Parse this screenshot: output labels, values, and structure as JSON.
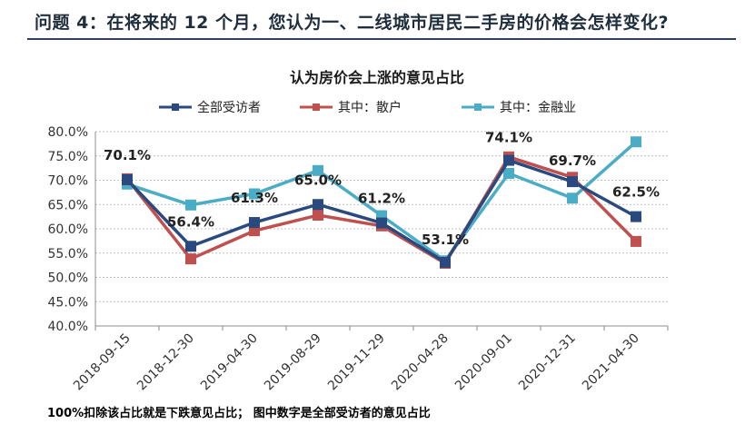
{
  "page": {
    "title": "问题 4：在将来的 12 个月，您认为一、二线城市居民二手房的价格会怎样变化?",
    "footnote": "100%扣除该占比就是下跌意见占比；  图中数字是全部受访者的意见占比"
  },
  "chart_data": {
    "type": "line",
    "title": "认为房价会上涨的意见占比",
    "categories": [
      "2018-09-15",
      "2018-12-30",
      "2019-04-30",
      "2019-08-29",
      "2019-11-29",
      "2020-04-28",
      "2020-09-01",
      "2020-12-31",
      "2021-04-30"
    ],
    "ylim": [
      40,
      80
    ],
    "yticks": [
      "40.0%",
      "45.0%",
      "50.0%",
      "55.0%",
      "60.0%",
      "65.0%",
      "70.0%",
      "75.0%",
      "80.0%"
    ],
    "grid": "horizontal-dashed",
    "legend": "top",
    "series": [
      {
        "name": "全部受访者",
        "color": "#2a4a7f",
        "values": [
          70.1,
          56.4,
          61.3,
          65.0,
          61.2,
          53.1,
          74.1,
          69.7,
          62.5
        ]
      },
      {
        "name": "其中：散户",
        "color": "#c0504d",
        "values": [
          70.3,
          53.8,
          59.6,
          62.8,
          60.6,
          52.9,
          74.8,
          70.6,
          57.4
        ]
      },
      {
        "name": "其中：金融业",
        "color": "#4bacc6",
        "values": [
          69.2,
          64.9,
          67.2,
          72.0,
          62.7,
          53.4,
          71.4,
          66.3,
          77.9
        ]
      }
    ],
    "data_labels": [
      "70.1%",
      "56.4%",
      "61.3%",
      "65.0%",
      "61.2%",
      "53.1%",
      "74.1%",
      "69.7%",
      "62.5%"
    ]
  }
}
